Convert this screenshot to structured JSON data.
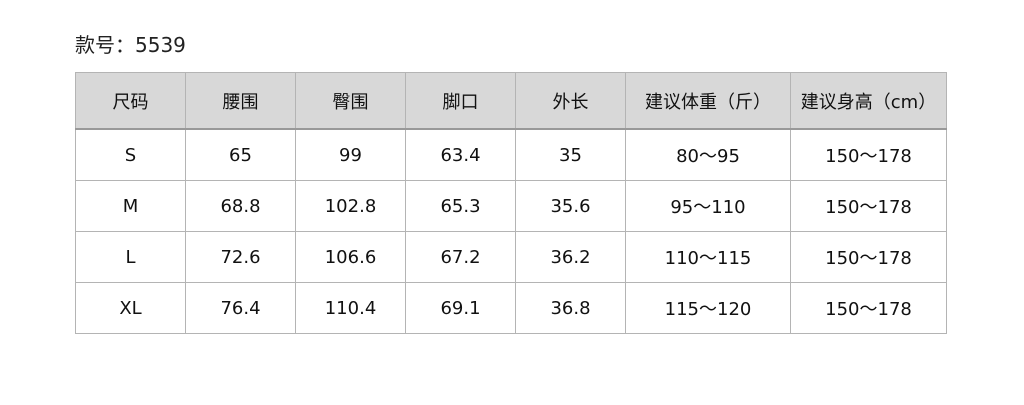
{
  "title": "款号：5539",
  "table": {
    "headers": [
      "尺码",
      "腰围",
      "臀围",
      "脚口",
      "外长",
      "建议体重（斤）",
      "建议身高（cm）"
    ],
    "rows": [
      [
        "S",
        "65",
        "99",
        "63.4",
        "35",
        "80～95",
        "150～178"
      ],
      [
        "M",
        "68.8",
        "102.8",
        "65.3",
        "35.6",
        "95～110",
        "150～178"
      ],
      [
        "L",
        "72.6",
        "106.6",
        "67.2",
        "36.2",
        "110～115",
        "150～178"
      ],
      [
        "XL",
        "76.4",
        "110.4",
        "69.1",
        "36.8",
        "115～120",
        "150～178"
      ]
    ]
  }
}
